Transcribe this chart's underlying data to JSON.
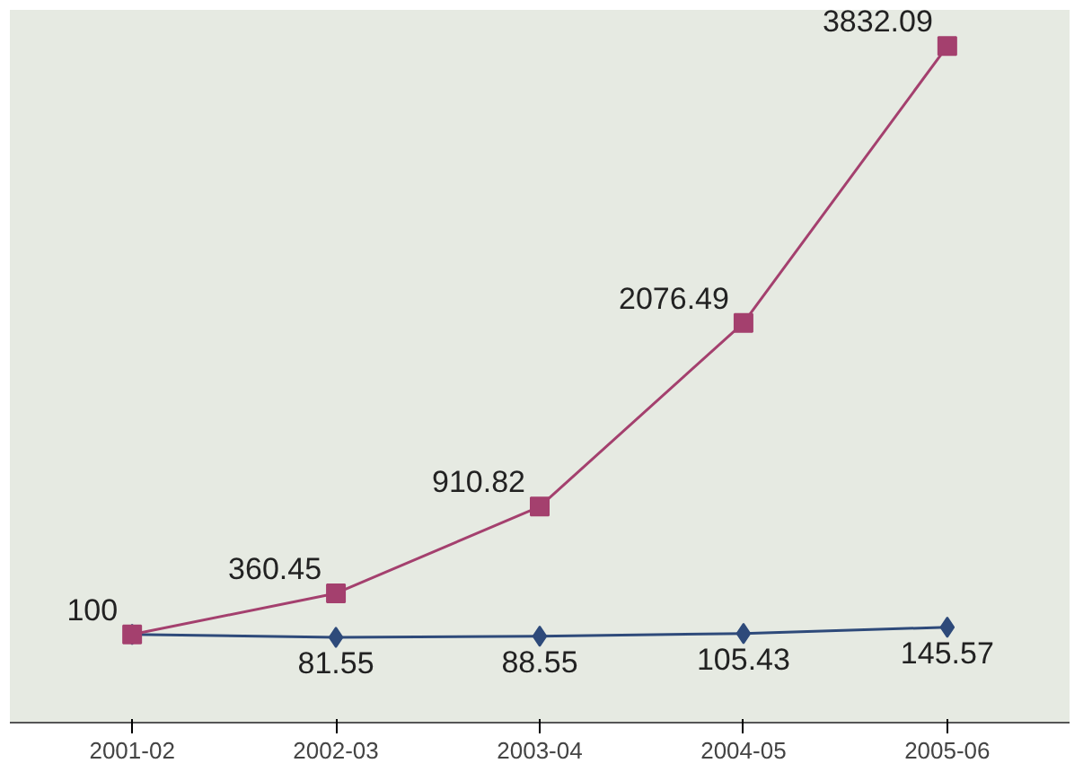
{
  "chart_data": {
    "type": "line",
    "categories": [
      "2001-02",
      "2002-03",
      "2003-04",
      "2004-05",
      "2005-06"
    ],
    "series": [
      {
        "color": "#2e4a7a",
        "marker": "diamond",
        "values": [
          100,
          81.55,
          88.55,
          105.43,
          145.57
        ],
        "value_labels": [
          null,
          "81.55",
          "88.55",
          "105.43",
          "145.57"
        ]
      },
      {
        "color": "#a4406e",
        "marker": "square",
        "values": [
          100,
          360.45,
          910.82,
          2076.49,
          3832.09
        ],
        "value_labels": [
          "100",
          "360.45",
          "910.82",
          "2076.49",
          "3832.09"
        ]
      }
    ],
    "line_style": "solid"
  }
}
